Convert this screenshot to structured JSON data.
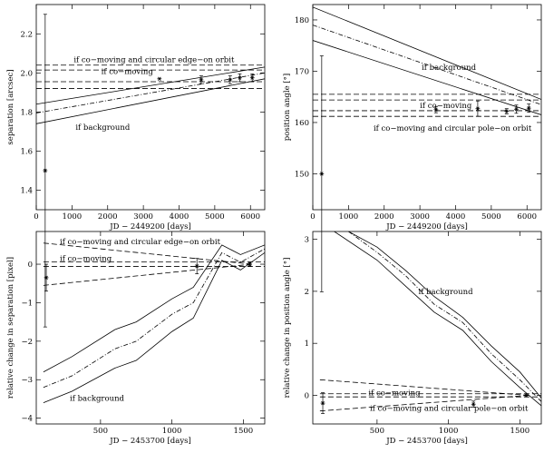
{
  "chart_data": [
    {
      "type": "line",
      "xlabel": "JD − 2449200 [days]",
      "ylabel": "separation [arcsec]",
      "xlim": [
        0,
        6400
      ],
      "ylim": [
        1.3,
        2.35
      ],
      "xticks": [
        0,
        1000,
        2000,
        3000,
        4000,
        5000,
        6000
      ],
      "yticks": [
        1.4,
        1.6,
        1.8,
        2.0,
        2.2
      ],
      "ytick_labels": [
        "1.4",
        "1.6",
        "1.8",
        "2.0",
        "2.2"
      ],
      "annotations": [
        "if co−moving and circular edge−on orbit",
        "if co−moving",
        "if background"
      ],
      "series": [
        {
          "name": "if co-moving and circular edge-on orbit (upper)",
          "style": "dashed",
          "x": [
            0,
            6400
          ],
          "y": [
            2.04,
            2.04
          ]
        },
        {
          "name": "if co-moving and circular edge-on orbit (lower)",
          "style": "dashed",
          "x": [
            0,
            6400
          ],
          "y": [
            1.92,
            1.92
          ]
        },
        {
          "name": "if co-moving (upper)",
          "style": "dashed",
          "x": [
            0,
            6400
          ],
          "y": [
            2.015,
            2.015
          ]
        },
        {
          "name": "if co-moving (lower)",
          "style": "dashed",
          "x": [
            0,
            6400
          ],
          "y": [
            1.955,
            1.955
          ]
        },
        {
          "name": "if background (upper)",
          "style": "solid",
          "x": [
            0,
            6400
          ],
          "y": [
            1.84,
            2.03
          ]
        },
        {
          "name": "if background (mean)",
          "style": "dashdot",
          "x": [
            0,
            6400
          ],
          "y": [
            1.795,
            2.0
          ]
        },
        {
          "name": "if background (lower)",
          "style": "solid",
          "x": [
            0,
            6400
          ],
          "y": [
            1.74,
            1.97
          ]
        }
      ],
      "points": [
        {
          "x": 250,
          "y": 1.5,
          "err": 0.8
        },
        {
          "x": 3450,
          "y": 1.97,
          "err": 0.0
        },
        {
          "x": 4620,
          "y": 1.965,
          "err": 0.02
        },
        {
          "x": 5430,
          "y": 1.965,
          "err": 0.02
        },
        {
          "x": 5700,
          "y": 1.975,
          "err": 0.02
        },
        {
          "x": 6050,
          "y": 1.975,
          "err": 0.02
        }
      ]
    },
    {
      "type": "line",
      "xlabel": "JD − 2449200 [days]",
      "ylabel": "position angle [°]",
      "xlim": [
        0,
        6400
      ],
      "ylim": [
        143,
        183
      ],
      "xticks": [
        0,
        1000,
        2000,
        3000,
        4000,
        5000,
        6000
      ],
      "yticks": [
        150,
        160,
        170,
        180
      ],
      "ytick_labels": [
        "150",
        "160",
        "170",
        "180"
      ],
      "annotations": [
        "if background",
        "if co−moving",
        "if co−moving and circular pole−on orbit"
      ],
      "series": [
        {
          "name": "if background (upper)",
          "style": "solid",
          "x": [
            0,
            6400
          ],
          "y": [
            182.5,
            164.5
          ]
        },
        {
          "name": "if background (mean)",
          "style": "dashdot",
          "x": [
            0,
            6400
          ],
          "y": [
            179.0,
            163.5
          ]
        },
        {
          "name": "if background (lower)",
          "style": "solid",
          "x": [
            0,
            6400
          ],
          "y": [
            176.0,
            161.5
          ]
        },
        {
          "name": "if co-moving and circular pole-on orbit (upper)",
          "style": "dashed",
          "x": [
            0,
            6400
          ],
          "y": [
            165.5,
            165.5
          ]
        },
        {
          "name": "if co-moving and circular pole-on orbit (lower)",
          "style": "dashed",
          "x": [
            0,
            6400
          ],
          "y": [
            161.2,
            161.2
          ]
        },
        {
          "name": "if co-moving (upper)",
          "style": "dashed",
          "x": [
            0,
            6400
          ],
          "y": [
            164.4,
            164.4
          ]
        },
        {
          "name": "if co-moving (lower)",
          "style": "dashed",
          "x": [
            0,
            6400
          ],
          "y": [
            162.3,
            162.3
          ]
        }
      ],
      "points": [
        {
          "x": 250,
          "y": 150.0,
          "err": 23.0
        },
        {
          "x": 3450,
          "y": 162.5,
          "err": 0.6
        },
        {
          "x": 4620,
          "y": 162.7,
          "err": 1.5
        },
        {
          "x": 5430,
          "y": 162.2,
          "err": 0.5
        },
        {
          "x": 5700,
          "y": 162.6,
          "err": 0.8
        },
        {
          "x": 6050,
          "y": 162.8,
          "err": 0.8
        }
      ]
    },
    {
      "type": "line",
      "xlabel": "JD − 2453700 [days]",
      "ylabel": "relative change in separation [pixel]",
      "xlim": [
        50,
        1650
      ],
      "ylim": [
        -4.15,
        0.85
      ],
      "xticks": [
        500,
        1000,
        1500
      ],
      "yticks": [
        -4,
        -3,
        -2,
        -1,
        0
      ],
      "ytick_labels": [
        "−4",
        "−3",
        "−2",
        "−1",
        "0"
      ],
      "annotations": [
        "if co−moving and circular edge−on orbit",
        "if co−moving",
        "if background"
      ],
      "series": [
        {
          "name": "if co-moving and circular edge-on orbit (upper)",
          "style": "dashed",
          "x": [
            100,
            1560
          ],
          "y": [
            0.55,
            0.0
          ]
        },
        {
          "name": "if co-moving and circular edge-on orbit (lower)",
          "style": "dashed",
          "x": [
            100,
            1560
          ],
          "y": [
            -0.55,
            0.0
          ]
        },
        {
          "name": "if co-moving (upper)",
          "style": "dashed",
          "x": [
            100,
            1650
          ],
          "y": [
            0.06,
            0.06
          ]
        },
        {
          "name": "if co-moving (lower)",
          "style": "dashed",
          "x": [
            100,
            1650
          ],
          "y": [
            -0.06,
            -0.06
          ]
        },
        {
          "name": "if background (upper)",
          "style": "solid",
          "x": [
            100,
            300,
            600,
            750,
            1000,
            1150,
            1350,
            1480,
            1650
          ],
          "y": [
            -2.8,
            -2.4,
            -1.7,
            -1.5,
            -0.9,
            -0.6,
            0.5,
            0.25,
            0.5
          ]
        },
        {
          "name": "if background (mean)",
          "style": "dashdot",
          "x": [
            100,
            300,
            600,
            750,
            1000,
            1150,
            1350,
            1480,
            1650
          ],
          "y": [
            -3.2,
            -2.9,
            -2.2,
            -2.0,
            -1.3,
            -1.0,
            0.3,
            0.05,
            0.4
          ]
        },
        {
          "name": "if background (lower)",
          "style": "solid",
          "x": [
            100,
            300,
            600,
            750,
            1000,
            1150,
            1350,
            1480,
            1650
          ],
          "y": [
            -3.6,
            -3.3,
            -2.7,
            -2.5,
            -1.75,
            -1.4,
            0.1,
            -0.15,
            0.3
          ]
        }
      ],
      "points": [
        {
          "x": 120,
          "y": -0.35,
          "err": 0.35
        },
        {
          "x": 1175,
          "y": -0.05,
          "err": 0.2
        },
        {
          "x": 1545,
          "y": 0.0,
          "err": 0.05
        }
      ]
    },
    {
      "type": "line",
      "xlabel": "JD − 2453700 [days]",
      "ylabel": "relative change in position angle [°]",
      "xlim": [
        50,
        1650
      ],
      "ylim": [
        -0.55,
        3.15
      ],
      "xticks": [
        500,
        1000,
        1500
      ],
      "yticks": [
        0,
        1,
        2,
        3
      ],
      "ytick_labels": [
        "0",
        "1",
        "2",
        "3"
      ],
      "annotations": [
        "if background",
        "if co−moving",
        "if co−moving and circular pole−on orbit"
      ],
      "series": [
        {
          "name": "if background (upper)",
          "style": "solid",
          "x": [
            300,
            500,
            700,
            900,
            1100,
            1300,
            1500,
            1650
          ],
          "y": [
            3.15,
            2.85,
            2.4,
            1.9,
            1.5,
            0.95,
            0.45,
            -0.05
          ]
        },
        {
          "name": "if background (mean)",
          "style": "dashdot",
          "x": [
            300,
            500,
            700,
            900,
            1100,
            1300,
            1500,
            1650
          ],
          "y": [
            3.15,
            2.75,
            2.3,
            1.75,
            1.4,
            0.8,
            0.3,
            -0.12
          ]
        },
        {
          "name": "if background (lower)",
          "style": "solid",
          "x": [
            200,
            500,
            700,
            900,
            1100,
            1300,
            1500,
            1650
          ],
          "y": [
            3.15,
            2.6,
            2.1,
            1.6,
            1.25,
            0.65,
            0.15,
            -0.2
          ]
        },
        {
          "name": "if co-moving and circular pole-on orbit (upper)",
          "style": "dashed",
          "x": [
            100,
            1560
          ],
          "y": [
            0.3,
            0.0
          ]
        },
        {
          "name": "if co-moving and circular pole-on orbit (lower)",
          "style": "dashed",
          "x": [
            100,
            1560
          ],
          "y": [
            -0.3,
            0.0
          ]
        },
        {
          "name": "if co-moving (upper)",
          "style": "dashed",
          "x": [
            100,
            1650
          ],
          "y": [
            0.03,
            0.03
          ]
        },
        {
          "name": "if co-moving (lower)",
          "style": "dashed",
          "x": [
            100,
            1650
          ],
          "y": [
            -0.03,
            -0.03
          ]
        }
      ],
      "points": [
        {
          "x": 120,
          "y": -0.15,
          "err": 0.2
        },
        {
          "x": 1175,
          "y": -0.17,
          "err": 0.06
        },
        {
          "x": 1545,
          "y": 0.0,
          "err": 0.03
        }
      ]
    }
  ]
}
